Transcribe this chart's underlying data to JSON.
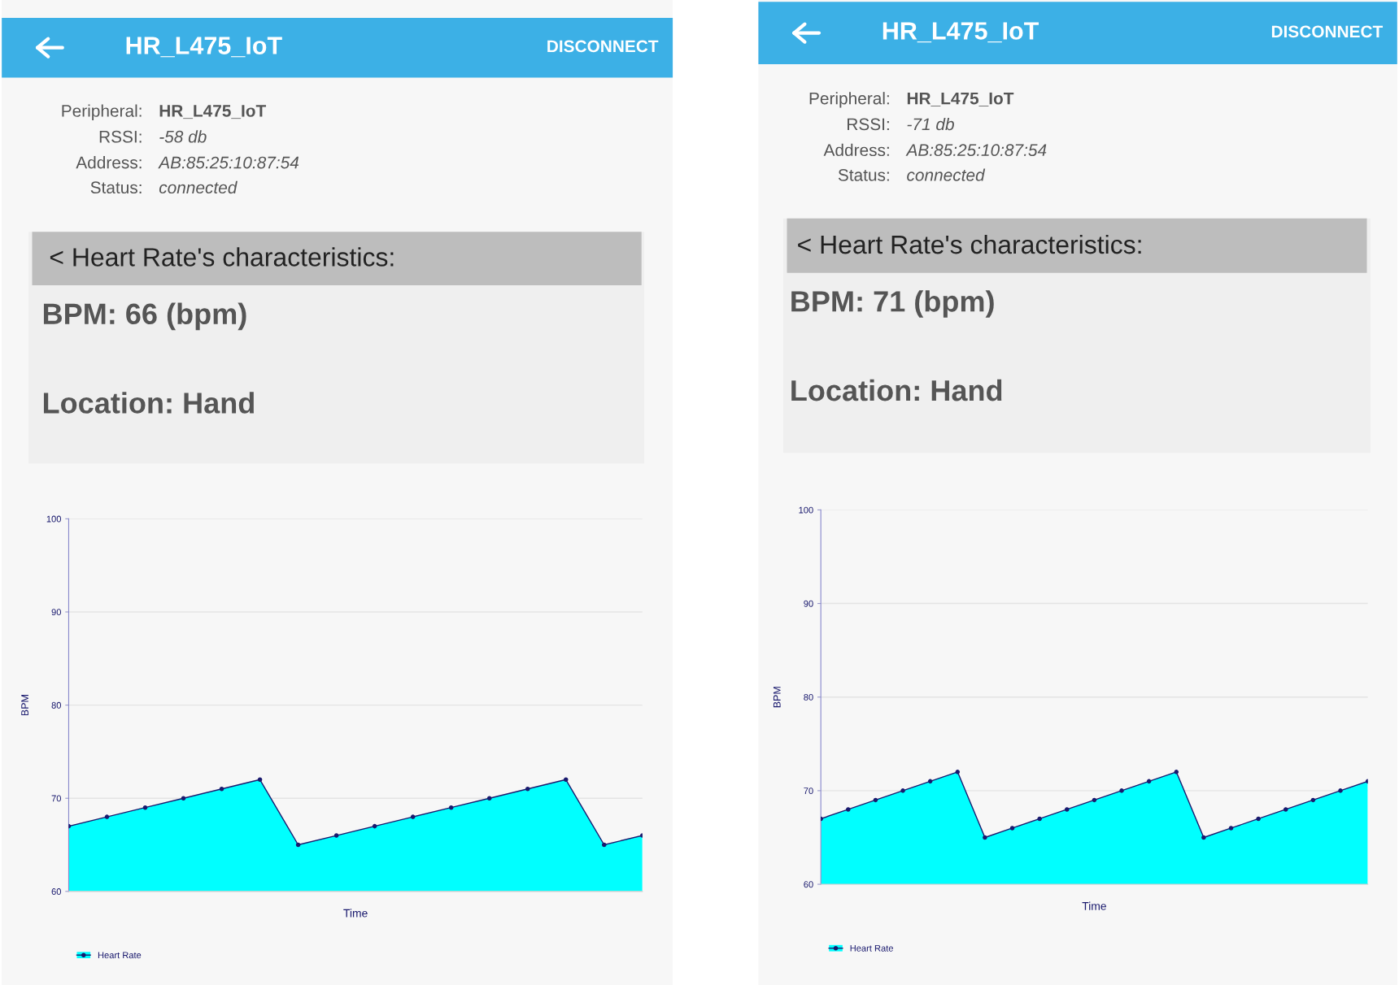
{
  "chart_data": [
    {
      "type": "other",
      "title": "HR_L475_IoT",
      "annotations": [
        "DISCONNECT",
        "Peripheral:",
        "HR_L475_IoT",
        "RSSI:",
        "-58 db",
        "Address:",
        "AB:85:25:10:87:54",
        "Status:",
        "connected",
        "< Heart Rate's characteristics:",
        "BPM: 66 (bpm)",
        "Location: Hand"
      ]
    },
    {
      "type": "area",
      "xlabel": "Time",
      "ylabel": "BPM",
      "categories": [
        null,
        null,
        null,
        null,
        null,
        null,
        null,
        null,
        null,
        null,
        null,
        null,
        null,
        null,
        null,
        null
      ],
      "series": [
        {
          "name": "Heart Rate",
          "color": "#00ffff",
          "values": [
            67,
            68,
            69,
            70,
            71,
            72,
            65,
            66,
            67,
            68,
            69,
            70,
            71,
            72,
            65,
            66
          ]
        }
      ],
      "ylim": [
        60,
        100
      ],
      "yticks": [
        60,
        70,
        80,
        90,
        100
      ],
      "grid": "y",
      "legend": "bottom left",
      "marker": "circle",
      "line_style": "solid"
    },
    {
      "type": "other",
      "title": "HR_L475_IoT",
      "annotations": [
        "DISCONNECT",
        "Peripheral:",
        "HR_L475_IoT",
        "RSSI:",
        "-71 db",
        "Address:",
        "AB:85:25:10:87:54",
        "Status:",
        "connected",
        "< Heart Rate's characteristics:",
        "BPM: 71 (bpm)",
        "Location: Hand"
      ]
    },
    {
      "type": "area",
      "xlabel": "Time",
      "ylabel": "BPM",
      "categories": [
        null,
        null,
        null,
        null,
        null,
        null,
        null,
        null,
        null,
        null,
        null,
        null,
        null,
        null,
        null,
        null,
        null,
        null,
        null,
        null,
        null
      ],
      "series": [
        {
          "name": "Heart Rate",
          "color": "#00ffff",
          "values": [
            67,
            68,
            69,
            70,
            71,
            72,
            65,
            66,
            67,
            68,
            69,
            70,
            71,
            72,
            65,
            66,
            67,
            68,
            69,
            70,
            71
          ]
        }
      ],
      "ylim": [
        60,
        100
      ],
      "yticks": [
        60,
        70,
        80,
        90,
        100
      ],
      "grid": "y",
      "legend": "bottom left",
      "marker": "circle",
      "line_style": "solid"
    }
  ]
}
